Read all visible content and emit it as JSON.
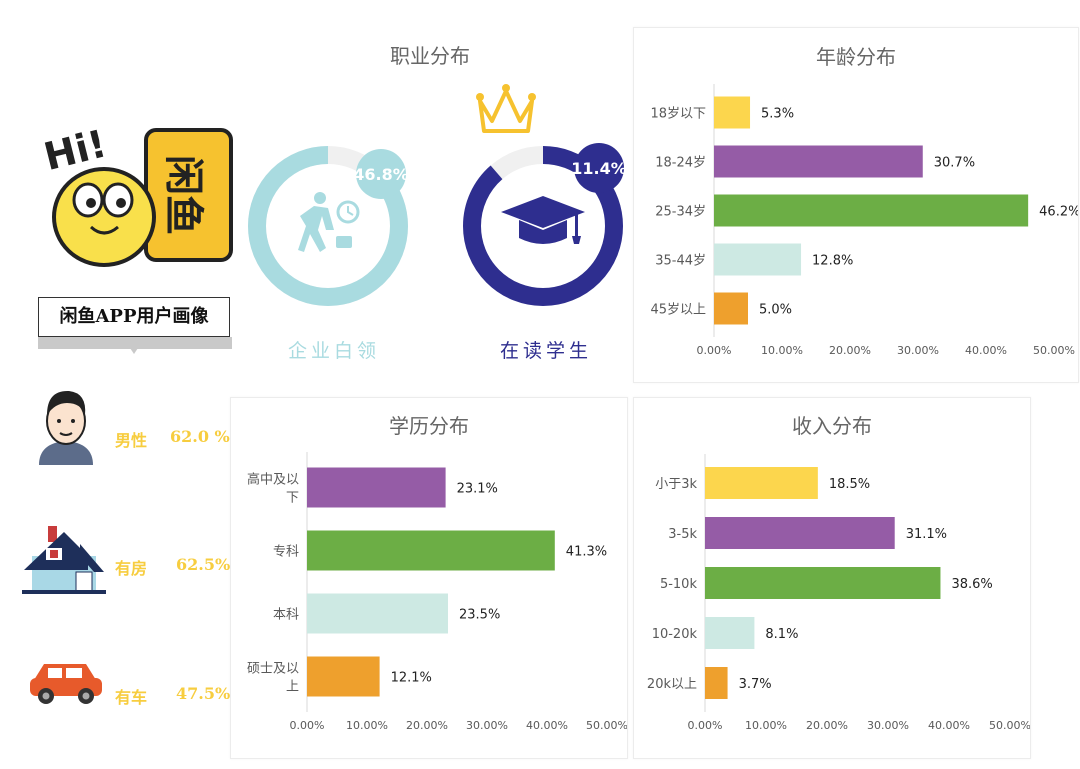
{
  "app": {
    "logo_greeting": "Hi!",
    "logo_text": "闲鱼",
    "title": "闲鱼APP用户画像"
  },
  "profile_stats": [
    {
      "icon": "man-avatar-icon",
      "label": "男性",
      "value": "62.0 %"
    },
    {
      "icon": "house-icon",
      "label": "有房",
      "value": "62.5%"
    },
    {
      "icon": "car-icon",
      "label": "有车",
      "value": "47.5%"
    }
  ],
  "occupation": {
    "title": "职业分布",
    "items": [
      {
        "label": "企业白领",
        "value_text": "46.8%",
        "fraction": 0.468,
        "color": "#a9dbe0",
        "track": "#f0f0f0",
        "icon": "walking-worker-icon"
      },
      {
        "label": "在读学生",
        "value_text": "11.4%",
        "fraction": 0.114,
        "color": "#2e2e8f",
        "track": "#f0f0f0",
        "icon": "graduation-cap-icon"
      }
    ]
  },
  "colors": {
    "yellow": "#fcd64d",
    "purple": "#955ca6",
    "green": "#6cae45",
    "mint": "#cde9e3",
    "orange": "#eea02d",
    "stat_text": "#f7cd3f"
  },
  "chart_data": [
    {
      "type": "bar",
      "orientation": "horizontal",
      "title": "年龄分布",
      "categories": [
        "18岁以下",
        "18-24岁",
        "25-34岁",
        "35-44岁",
        "45岁以上"
      ],
      "values": [
        5.3,
        30.7,
        46.2,
        12.8,
        5.0
      ],
      "value_labels": [
        "5.3%",
        "30.7%",
        "46.2%",
        "12.8%",
        "5.0%"
      ],
      "colors": [
        "#fcd64d",
        "#955ca6",
        "#6cae45",
        "#cde9e3",
        "#eea02d"
      ],
      "xlim": [
        0,
        50
      ],
      "xticks": [
        "0.00%",
        "10.00%",
        "20.00%",
        "30.00%",
        "40.00%",
        "50.00%"
      ],
      "grid": false
    },
    {
      "type": "bar",
      "orientation": "horizontal",
      "title": "学历分布",
      "categories": [
        "高中及以下",
        "专科",
        "本科",
        "硕士及以上"
      ],
      "values": [
        23.1,
        41.3,
        23.5,
        12.1
      ],
      "value_labels": [
        "23.1%",
        "41.3%",
        "23.5%",
        "12.1%"
      ],
      "colors": [
        "#955ca6",
        "#6cae45",
        "#cde9e3",
        "#eea02d"
      ],
      "xlim": [
        0,
        50
      ],
      "xticks": [
        "0.00%",
        "10.00%",
        "20.00%",
        "30.00%",
        "40.00%",
        "50.00%"
      ],
      "grid": false
    },
    {
      "type": "bar",
      "orientation": "horizontal",
      "title": "收入分布",
      "categories": [
        "小于3k",
        "3-5k",
        "5-10k",
        "10-20k",
        "20k以上"
      ],
      "values": [
        18.5,
        31.1,
        38.6,
        8.1,
        3.7
      ],
      "value_labels": [
        "18.5%",
        "31.1%",
        "38.6%",
        "8.1%",
        "3.7%"
      ],
      "colors": [
        "#fcd64d",
        "#955ca6",
        "#6cae45",
        "#cde9e3",
        "#eea02d"
      ],
      "xlim": [
        0,
        50
      ],
      "xticks": [
        "0.00%",
        "10.00%",
        "20.00%",
        "30.00%",
        "40.00%",
        "50.00%"
      ],
      "grid": false
    }
  ]
}
